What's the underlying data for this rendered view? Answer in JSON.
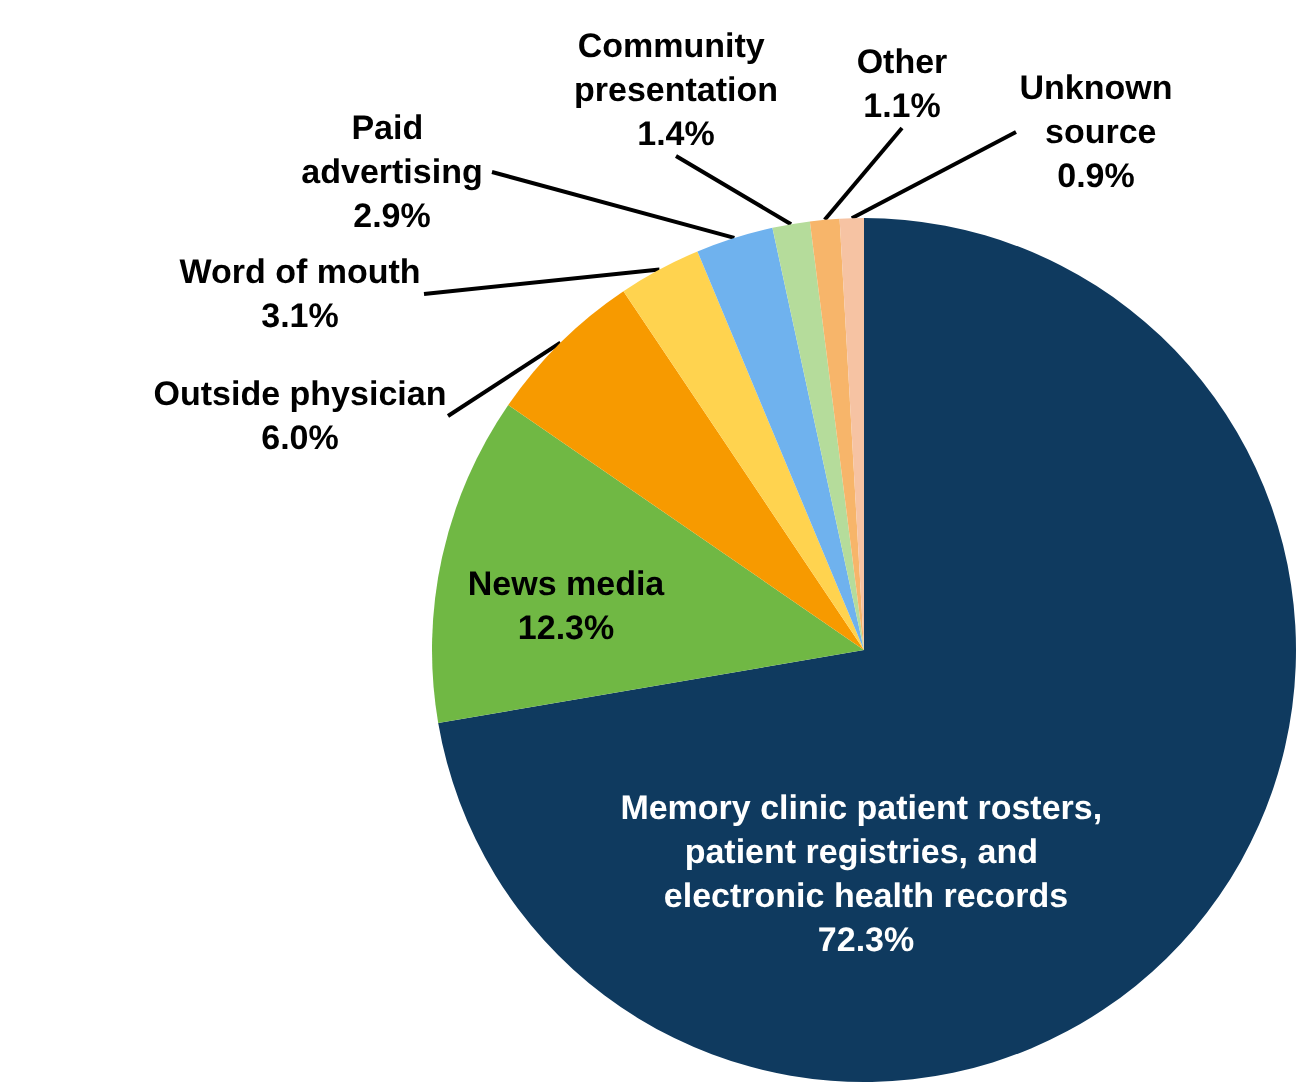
{
  "chart_data": {
    "type": "pie",
    "categories": [
      "Memory clinic patient rosters, patient registries, and electronic health records",
      "News media",
      "Outside physician",
      "Word of mouth",
      "Paid advertising",
      "Community presentation",
      "Other",
      "Unknown source"
    ],
    "values": [
      72.3,
      12.3,
      6.0,
      3.1,
      2.9,
      1.4,
      1.1,
      0.9
    ],
    "value_labels": [
      "72.3%",
      "12.3%",
      "6.0%",
      "3.1%",
      "2.9%",
      "1.4%",
      "1.1%",
      "0.9%"
    ],
    "colors": [
      "#0f3a5f",
      "#70b844",
      "#f79a00",
      "#ffd34f",
      "#6fb2ee",
      "#b5dc9b",
      "#f7b56a",
      "#f6c3a3"
    ],
    "legend": false
  }
}
